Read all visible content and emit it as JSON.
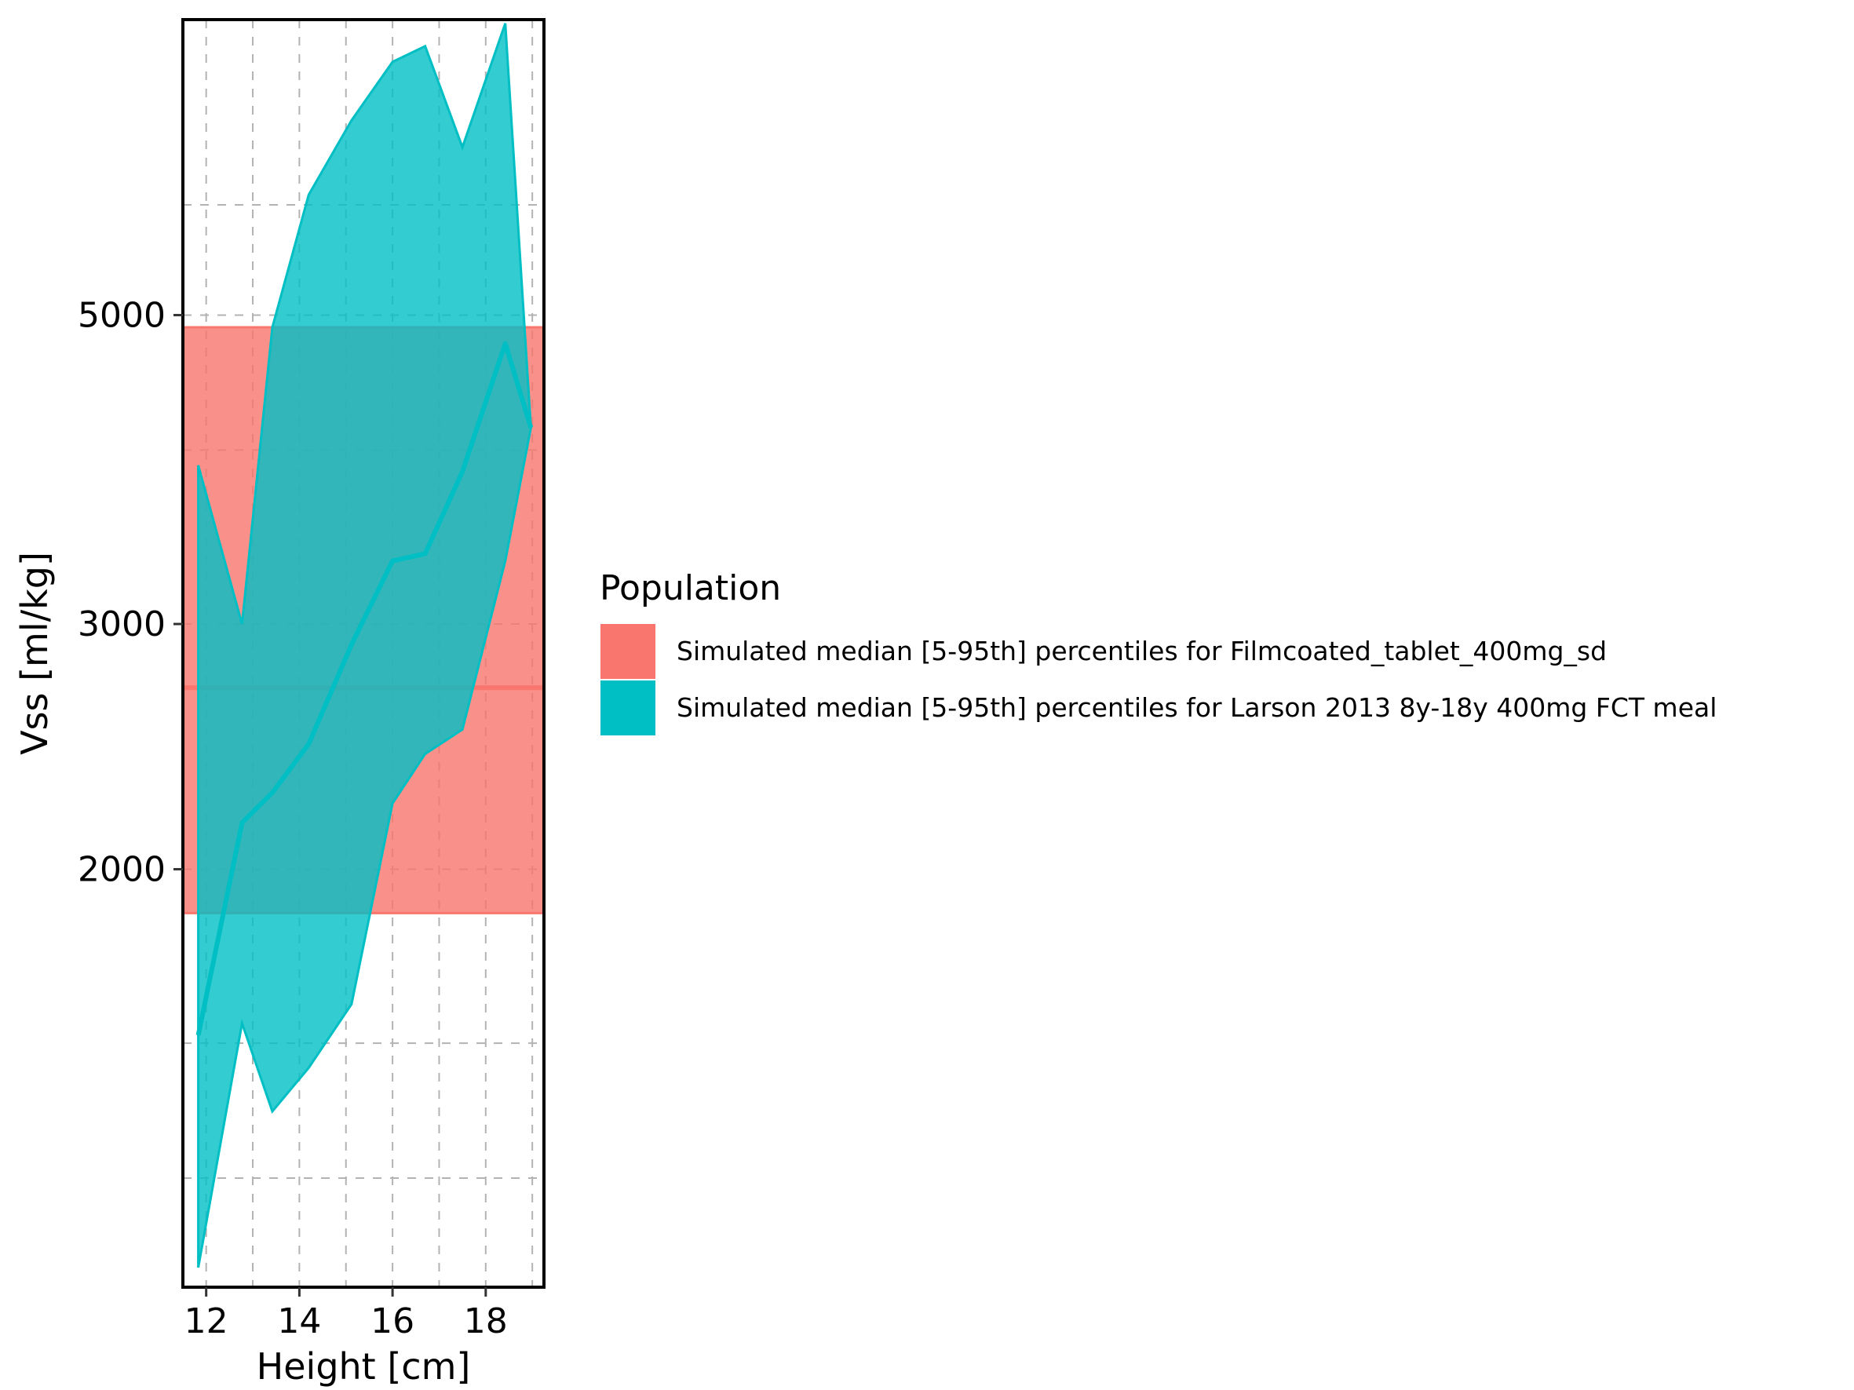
{
  "chart_data": {
    "type": "area",
    "xlabel": "Height [cm]",
    "ylabel": "Vss [ml/kg]",
    "y_scale": "log",
    "xlim": [
      11.5,
      19.25
    ],
    "ylim": [
      1002,
      8150
    ],
    "x_ticks": [
      12,
      14,
      16,
      18
    ],
    "x_tick_labels": [
      "12",
      "14",
      "16",
      "18"
    ],
    "x_minor_gridlines": [
      13,
      15,
      17,
      19
    ],
    "y_ticks": [
      2000,
      3000,
      5000
    ],
    "y_tick_labels": [
      "2000",
      "3000",
      "5000"
    ],
    "y_minor_gridlines": [
      1200,
      1500,
      4000,
      6000
    ],
    "grid": true,
    "legend": {
      "title": "Population",
      "placement": "right"
    },
    "series": [
      {
        "name": "Simulated median [5-95th] percentiles for Filmcoated_tablet_400mg_sd",
        "color": "#F8766D",
        "x": [
          11.5,
          19.25
        ],
        "median": [
          2700,
          2700
        ],
        "lower": [
          1860,
          1860
        ],
        "upper": [
          4900,
          4900
        ]
      },
      {
        "name": "Simulated median [5-95th] percentiles for Larson 2013 8y-18y 400mg FCT meal",
        "color": "#00BFC4",
        "x": [
          11.83,
          12.77,
          13.42,
          14.2,
          15.12,
          16.0,
          16.7,
          17.5,
          18.42,
          18.97
        ],
        "median": [
          1520,
          2160,
          2270,
          2460,
          2900,
          3330,
          3370,
          3860,
          4770,
          4150
        ],
        "lower": [
          1035,
          1550,
          1340,
          1440,
          1600,
          2230,
          2420,
          2520,
          3330,
          4150
        ],
        "upper": [
          3900,
          3000,
          4900,
          6100,
          6900,
          7600,
          7800,
          6600,
          8100,
          4150
        ]
      }
    ]
  }
}
